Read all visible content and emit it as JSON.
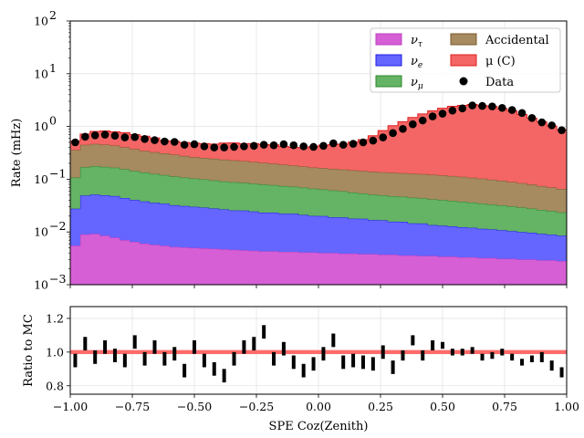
{
  "chart_data": [
    {
      "type": "area",
      "subtype": "stacked-step-histogram",
      "title": "",
      "xlabel": "",
      "ylabel": "Rate (mHz)",
      "yscale": "log",
      "xlim": [
        -1.0,
        1.0
      ],
      "ylim": [
        0.001,
        100
      ],
      "grid": true,
      "legend_position": "top-right",
      "legend_columns": 2,
      "x_tick_labels": [
        "−1.00",
        "−0.75",
        "−0.50",
        "−0.25",
        "0.00",
        "0.25",
        "0.50",
        "0.75",
        "1.00"
      ],
      "y_tick_labels": [
        {
          "base": "10",
          "exp": "−3"
        },
        {
          "base": "10",
          "exp": "−2"
        },
        {
          "base": "10",
          "exp": "−1"
        },
        {
          "base": "10",
          "exp": "0"
        },
        {
          "base": "10",
          "exp": "1"
        },
        {
          "base": "10",
          "exp": "2"
        }
      ],
      "bin_edges_start": -1.0,
      "bin_width": 0.04,
      "series": [
        {
          "name": "ν_τ",
          "label_base": "ν",
          "label_sub": "τ",
          "color": "#bf3fbf",
          "fill": "#d65fd6",
          "values": [
            0.0045,
            0.008,
            0.0082,
            0.0075,
            0.0068,
            0.006,
            0.0055,
            0.005,
            0.0047,
            0.0045,
            0.0042,
            0.0041,
            0.004,
            0.0039,
            0.0038,
            0.0037,
            0.0036,
            0.0035,
            0.0034,
            0.0033,
            0.0033,
            0.0032,
            0.0032,
            0.0031,
            0.0031,
            0.003,
            0.003,
            0.0029,
            0.0029,
            0.0028,
            0.0028,
            0.0027,
            0.0027,
            0.0026,
            0.0026,
            0.0025,
            0.0025,
            0.0024,
            0.0024,
            0.0023,
            0.0023,
            0.0022,
            0.0022,
            0.0021,
            0.0021,
            0.002,
            0.002,
            0.0019,
            0.0019,
            0.0018
          ]
        },
        {
          "name": "ν_e",
          "label_base": "ν",
          "label_sub": "e",
          "color": "#1f1fe0",
          "fill": "#6565ff",
          "values": [
            0.022,
            0.04,
            0.042,
            0.041,
            0.04,
            0.037,
            0.034,
            0.032,
            0.03,
            0.029,
            0.027,
            0.026,
            0.025,
            0.024,
            0.023,
            0.022,
            0.021,
            0.021,
            0.02,
            0.019,
            0.019,
            0.018,
            0.018,
            0.017,
            0.016,
            0.016,
            0.015,
            0.015,
            0.014,
            0.014,
            0.013,
            0.013,
            0.012,
            0.012,
            0.011,
            0.011,
            0.01,
            0.0098,
            0.0094,
            0.009,
            0.0087,
            0.0083,
            0.008,
            0.0077,
            0.0073,
            0.007,
            0.0067,
            0.0063,
            0.006,
            0.0057
          ]
        },
        {
          "name": "ν_μ",
          "label_base": "ν",
          "label_sub": "μ",
          "color": "#2a8a2a",
          "fill": "#65b365",
          "values": [
            0.08,
            0.12,
            0.125,
            0.122,
            0.118,
            0.11,
            0.102,
            0.096,
            0.09,
            0.085,
            0.08,
            0.076,
            0.073,
            0.07,
            0.067,
            0.064,
            0.062,
            0.06,
            0.058,
            0.056,
            0.054,
            0.052,
            0.05,
            0.048,
            0.046,
            0.044,
            0.042,
            0.04,
            0.038,
            0.036,
            0.034,
            0.033,
            0.032,
            0.031,
            0.03,
            0.029,
            0.028,
            0.027,
            0.026,
            0.025,
            0.024,
            0.023,
            0.022,
            0.021,
            0.02,
            0.019,
            0.018,
            0.017,
            0.016,
            0.015
          ]
        },
        {
          "name": "Accidental",
          "label_base": "Accidental",
          "label_sub": "",
          "color": "#7a5a2a",
          "fill": "#a68a60",
          "values": [
            0.25,
            0.28,
            0.29,
            0.28,
            0.27,
            0.25,
            0.23,
            0.21,
            0.2,
            0.19,
            0.18,
            0.17,
            0.16,
            0.155,
            0.15,
            0.145,
            0.14,
            0.135,
            0.13,
            0.125,
            0.12,
            0.115,
            0.11,
            0.105,
            0.1,
            0.098,
            0.096,
            0.094,
            0.092,
            0.09,
            0.088,
            0.086,
            0.085,
            0.084,
            0.083,
            0.082,
            0.08,
            0.078,
            0.076,
            0.074,
            0.071,
            0.068,
            0.065,
            0.062,
            0.058,
            0.055,
            0.052,
            0.048,
            0.045,
            0.042
          ]
        },
        {
          "name": "μ (C)",
          "label_base": "μ (C)",
          "label_sub": "",
          "color": "#e02020",
          "fill": "#f46565",
          "values": [
            0.17,
            0.27,
            0.34,
            0.37,
            0.36,
            0.36,
            0.33,
            0.31,
            0.28,
            0.23,
            0.23,
            0.22,
            0.22,
            0.22,
            0.22,
            0.25,
            0.26,
            0.25,
            0.26,
            0.25,
            0.25,
            0.23,
            0.22,
            0.22,
            0.25,
            0.28,
            0.3,
            0.31,
            0.36,
            0.42,
            0.53,
            0.7,
            0.9,
            1.1,
            1.35,
            1.6,
            1.85,
            2.1,
            2.3,
            2.4,
            2.5,
            2.4,
            2.3,
            2.1,
            1.9,
            1.6,
            1.35,
            1.15,
            0.95,
            0.8
          ]
        }
      ],
      "data_series": {
        "name": "Data",
        "color": "#000000",
        "x": [
          -0.98,
          -0.94,
          -0.9,
          -0.86,
          -0.82,
          -0.78,
          -0.74,
          -0.7,
          -0.66,
          -0.62,
          -0.58,
          -0.54,
          -0.5,
          -0.46,
          -0.42,
          -0.38,
          -0.34,
          -0.3,
          -0.26,
          -0.22,
          -0.18,
          -0.14,
          -0.1,
          -0.06,
          -0.02,
          0.02,
          0.06,
          0.1,
          0.14,
          0.18,
          0.22,
          0.26,
          0.3,
          0.34,
          0.38,
          0.42,
          0.46,
          0.5,
          0.54,
          0.58,
          0.62,
          0.66,
          0.7,
          0.74,
          0.78,
          0.82,
          0.86,
          0.9,
          0.94,
          0.98
        ],
        "y": [
          0.5,
          0.64,
          0.68,
          0.7,
          0.67,
          0.62,
          0.63,
          0.58,
          0.55,
          0.52,
          0.51,
          0.45,
          0.46,
          0.42,
          0.4,
          0.4,
          0.41,
          0.42,
          0.43,
          0.45,
          0.44,
          0.46,
          0.44,
          0.42,
          0.41,
          0.43,
          0.48,
          0.45,
          0.47,
          0.5,
          0.54,
          0.62,
          0.75,
          0.9,
          1.1,
          1.3,
          1.55,
          1.75,
          2.0,
          2.2,
          2.5,
          2.45,
          2.4,
          2.25,
          2.05,
          1.8,
          1.45,
          1.2,
          1.05,
          0.85
        ]
      }
    },
    {
      "type": "bar",
      "subtype": "ratio-error-bars",
      "title": "",
      "xlabel": "SPE Coz(Zenith)",
      "ylabel": "Ratio to MC",
      "xlim": [
        -1.0,
        1.0
      ],
      "ylim": [
        0.75,
        1.27
      ],
      "grid": true,
      "x_tick_labels": [
        "−1.00",
        "−0.75",
        "−0.50",
        "−0.25",
        "0.00",
        "0.25",
        "0.50",
        "0.75",
        "1.00"
      ],
      "y_ticks": [
        0.8,
        1.0,
        1.2
      ],
      "y_tick_labels": [
        "0.8",
        "1.0",
        "1.2"
      ],
      "mc_band": {
        "color": "#ff6b6b",
        "x": [
          -1.0,
          1.0
        ],
        "center": 1.0,
        "halfwidth": 0.012
      },
      "x": [
        -0.98,
        -0.94,
        -0.9,
        -0.86,
        -0.82,
        -0.78,
        -0.74,
        -0.7,
        -0.66,
        -0.62,
        -0.58,
        -0.54,
        -0.5,
        -0.46,
        -0.42,
        -0.38,
        -0.34,
        -0.3,
        -0.26,
        -0.22,
        -0.18,
        -0.14,
        -0.1,
        -0.06,
        -0.02,
        0.02,
        0.06,
        0.1,
        0.14,
        0.18,
        0.22,
        0.26,
        0.3,
        0.34,
        0.38,
        0.42,
        0.46,
        0.5,
        0.54,
        0.58,
        0.62,
        0.66,
        0.7,
        0.74,
        0.78,
        0.82,
        0.86,
        0.9,
        0.94,
        0.98
      ],
      "values": [
        0.95,
        1.05,
        0.97,
        1.03,
        0.98,
        0.95,
        1.06,
        0.96,
        1.03,
        0.96,
        0.99,
        0.89,
        1.03,
        0.95,
        0.9,
        0.86,
        0.96,
        1.03,
        1.05,
        1.12,
        0.96,
        1.02,
        0.94,
        0.89,
        0.93,
        0.99,
        1.07,
        0.94,
        0.95,
        0.94,
        0.93,
        1.0,
        0.91,
        0.98,
        1.07,
        0.98,
        1.04,
        1.04,
        1.0,
        1.0,
        1.01,
        0.97,
        0.98,
        1.0,
        0.97,
        0.94,
        0.96,
        0.97,
        0.92,
        0.88
      ],
      "errors": [
        0.04,
        0.04,
        0.04,
        0.04,
        0.04,
        0.04,
        0.04,
        0.04,
        0.04,
        0.04,
        0.04,
        0.04,
        0.04,
        0.04,
        0.04,
        0.04,
        0.04,
        0.04,
        0.04,
        0.04,
        0.04,
        0.04,
        0.04,
        0.04,
        0.04,
        0.04,
        0.04,
        0.04,
        0.04,
        0.04,
        0.04,
        0.04,
        0.04,
        0.03,
        0.03,
        0.03,
        0.03,
        0.02,
        0.02,
        0.02,
        0.02,
        0.02,
        0.02,
        0.02,
        0.02,
        0.02,
        0.02,
        0.03,
        0.03,
        0.03
      ]
    }
  ]
}
